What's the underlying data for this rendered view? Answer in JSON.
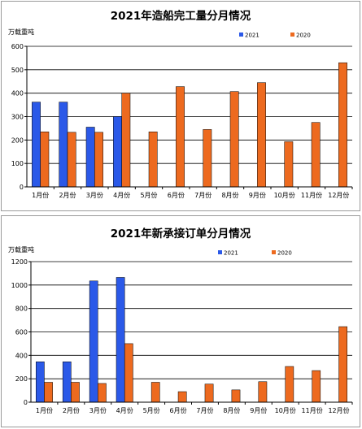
{
  "chart_data": [
    {
      "type": "bar",
      "title": "2021年造船完工量分月情况",
      "ylabel": "万载重吨",
      "ylim": [
        0,
        600
      ],
      "yticks": [
        0,
        100,
        200,
        300,
        400,
        500,
        600
      ],
      "grid": true,
      "legend_position": "top-right",
      "categories": [
        "1月份",
        "2月份",
        "3月份",
        "4月份",
        "5月份",
        "6月份",
        "7月份",
        "8月份",
        "9月份",
        "10月份",
        "11月份",
        "12月份"
      ],
      "series": [
        {
          "name": "2021",
          "color": "#2b59e8",
          "values": [
            362,
            362,
            255,
            300,
            null,
            null,
            null,
            null,
            null,
            null,
            null,
            null
          ]
        },
        {
          "name": "2020",
          "color": "#ed6a1f",
          "values": [
            235,
            233,
            233,
            400,
            235,
            428,
            245,
            407,
            445,
            193,
            275,
            530
          ]
        }
      ]
    },
    {
      "type": "bar",
      "title": "2021年新承接订单分月情况",
      "ylabel": "万载重吨",
      "ylim": [
        0,
        1200
      ],
      "yticks": [
        0,
        200,
        400,
        600,
        800,
        1000,
        1200
      ],
      "grid": true,
      "legend_position": "top-right",
      "categories": [
        "1月份",
        "2月份",
        "3月份",
        "4月份",
        "5月份",
        "6月份",
        "7月份",
        "8月份",
        "9月份",
        "10月份",
        "11月份",
        "12月份"
      ],
      "series": [
        {
          "name": "2021",
          "color": "#2b59e8",
          "values": [
            345,
            345,
            1035,
            1065,
            null,
            null,
            null,
            null,
            null,
            null,
            null,
            null
          ]
        },
        {
          "name": "2020",
          "color": "#ed6a1f",
          "values": [
            170,
            170,
            160,
            500,
            170,
            90,
            155,
            105,
            175,
            305,
            270,
            645
          ]
        }
      ]
    }
  ]
}
